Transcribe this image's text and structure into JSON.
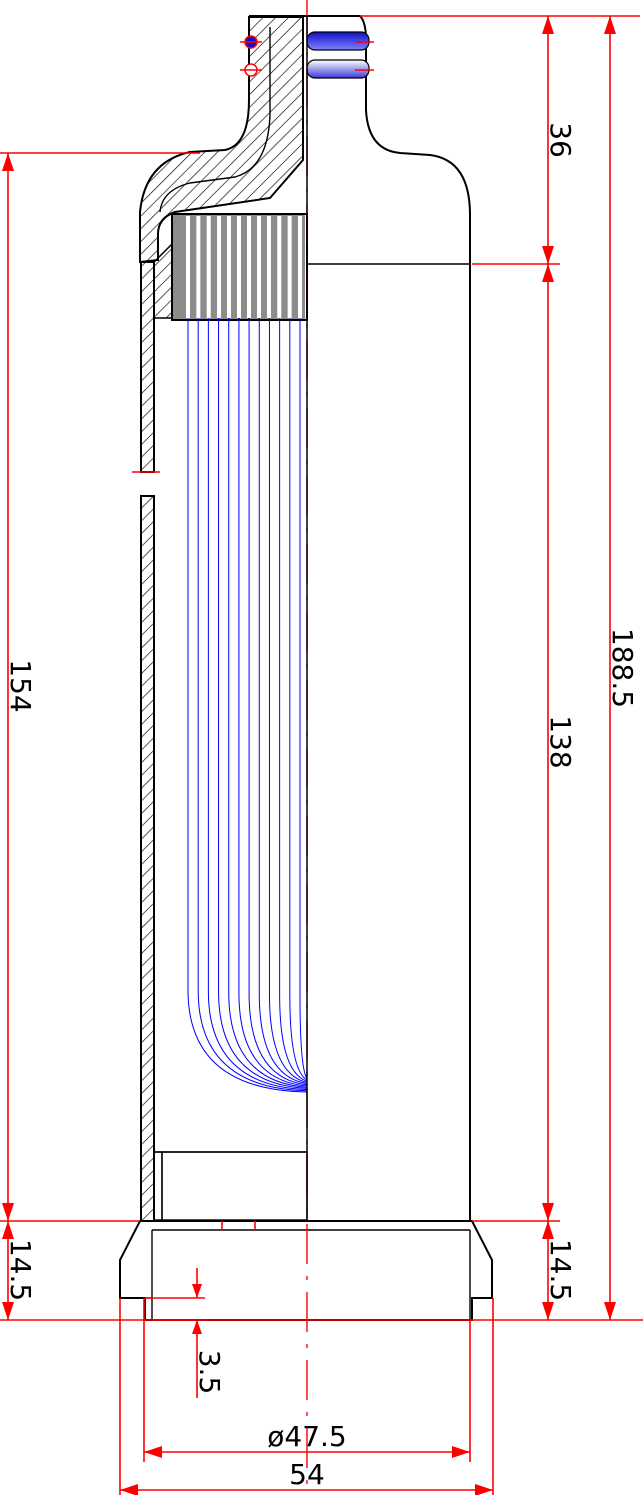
{
  "dimensions": {
    "total_height": "188.5",
    "body_height": "154",
    "inner_height": "138",
    "neck_height": "36",
    "base_height_left": "14.5",
    "base_height_right": "14.5",
    "wall_step": "3.5",
    "inner_diameter": "ø47.5",
    "outer_width": "54"
  },
  "colors": {
    "outline": "#000000",
    "dimension": "#ff0000",
    "fiber": "#0000ff",
    "o_ring": "#1010c8"
  },
  "fiber_count": 12
}
